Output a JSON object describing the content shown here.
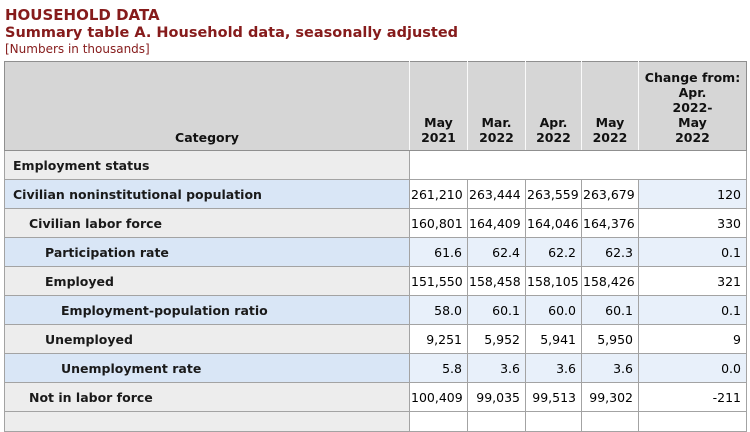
{
  "page": {
    "title": "HOUSEHOLD DATA",
    "subtitle": "Summary table A. Household data, seasonally adjusted",
    "note": "[Numbers in thousands]"
  },
  "table": {
    "header": {
      "category": "Category",
      "periods": [
        "May\n2021",
        "Mar.\n2022",
        "Apr.\n2022",
        "May\n2022"
      ],
      "change": "Change from:\nApr.\n2022-\nMay\n2022"
    },
    "rows": [
      {
        "category": "Employment status",
        "indent": 0,
        "section": true,
        "cat_bg": "gray",
        "data_bg": "white",
        "change_bg": "white",
        "values": [
          "",
          "",
          "",
          "",
          ""
        ]
      },
      {
        "category": "Civilian noninstitutional population",
        "indent": 0,
        "section": false,
        "cat_bg": "catblue",
        "data_bg": "white",
        "change_bg": "blue",
        "values": [
          "261,210",
          "263,444",
          "263,559",
          "263,679",
          "120"
        ]
      },
      {
        "category": "Civilian labor force",
        "indent": 1,
        "section": false,
        "cat_bg": "gray",
        "data_bg": "white",
        "change_bg": "white",
        "values": [
          "160,801",
          "164,409",
          "164,046",
          "164,376",
          "330"
        ]
      },
      {
        "category": "Participation rate",
        "indent": 2,
        "section": false,
        "cat_bg": "catblue",
        "data_bg": "blue",
        "change_bg": "blue",
        "values": [
          "61.6",
          "62.4",
          "62.2",
          "62.3",
          "0.1"
        ]
      },
      {
        "category": "Employed",
        "indent": 2,
        "section": false,
        "cat_bg": "gray",
        "data_bg": "white",
        "change_bg": "white",
        "values": [
          "151,550",
          "158,458",
          "158,105",
          "158,426",
          "321"
        ]
      },
      {
        "category": "Employment-population ratio",
        "indent": 3,
        "section": false,
        "cat_bg": "catblue",
        "data_bg": "blue",
        "change_bg": "blue",
        "values": [
          "58.0",
          "60.1",
          "60.0",
          "60.1",
          "0.1"
        ]
      },
      {
        "category": "Unemployed",
        "indent": 2,
        "section": false,
        "cat_bg": "gray",
        "data_bg": "white",
        "change_bg": "white",
        "values": [
          "9,251",
          "5,952",
          "5,941",
          "5,950",
          "9"
        ]
      },
      {
        "category": "Unemployment rate",
        "indent": 3,
        "section": false,
        "cat_bg": "catblue",
        "data_bg": "blue",
        "change_bg": "blue",
        "values": [
          "5.8",
          "3.6",
          "3.6",
          "3.6",
          "0.0"
        ]
      },
      {
        "category": "Not in labor force",
        "indent": 1,
        "section": false,
        "cat_bg": "gray",
        "data_bg": "white",
        "change_bg": "white",
        "values": [
          "100,409",
          "99,035",
          "99,513",
          "99,302",
          "-211"
        ]
      }
    ]
  },
  "colors": {
    "accent_maroon": "#861b1b",
    "header_bg": "#d6d6d6",
    "category_shade_blue": "#d9e6f6",
    "cell_shade_blue": "#e8f0fa",
    "row_gray": "#ededed",
    "border_dark": "#8f8f8f",
    "border_mid": "#a3a3a3"
  }
}
